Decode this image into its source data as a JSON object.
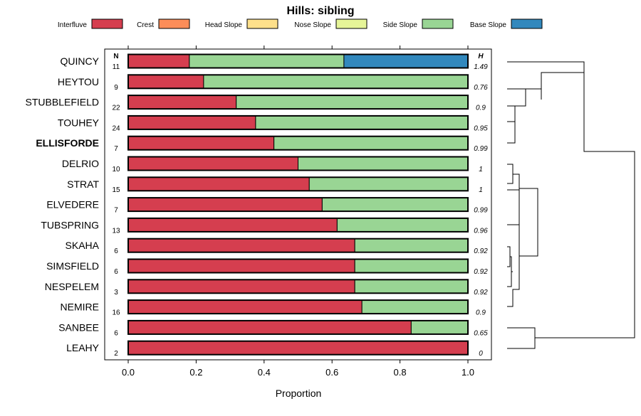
{
  "chart_data": {
    "type": "bar",
    "orientation": "horizontal-stacked",
    "title": "Hills: sibling",
    "xlabel": "Proportion",
    "ylabel": "",
    "xlim": [
      0,
      1
    ],
    "xticks": [
      "0.0",
      "0.2",
      "0.4",
      "0.6",
      "0.8",
      "1.0"
    ],
    "n_header": "N",
    "h_header": "H",
    "legend": [
      {
        "name": "Interfluve",
        "color": "#d53e4f"
      },
      {
        "name": "Crest",
        "color": "#fc8d59"
      },
      {
        "name": "Head Slope",
        "color": "#fee08b"
      },
      {
        "name": "Nose Slope",
        "color": "#e6f598"
      },
      {
        "name": "Side Slope",
        "color": "#99d594"
      },
      {
        "name": "Base Slope",
        "color": "#3288bd"
      }
    ],
    "categories": [
      "QUINCY",
      "HEYTOU",
      "STUBBLEFIELD",
      "TOUHEY",
      "ELLISFORDE",
      "DELRIO",
      "STRAT",
      "ELVEDERE",
      "TUBSPRING",
      "SKAHA",
      "SIMSFIELD",
      "NESPELEM",
      "NEMIRE",
      "SANBEE",
      "LEAHY"
    ],
    "bold_category": "ELLISFORDE",
    "n_values": [
      "11",
      "9",
      "22",
      "24",
      "7",
      "10",
      "15",
      "7",
      "13",
      "6",
      "6",
      "3",
      "16",
      "6",
      "2"
    ],
    "h_values": [
      "1.49",
      "0.76",
      "0.9",
      "0.95",
      "0.99",
      "1",
      "1",
      "0.99",
      "0.96",
      "0.92",
      "0.92",
      "0.92",
      "0.9",
      "0.65",
      "0"
    ],
    "series": [
      {
        "name": "Interfluve",
        "values": [
          0.18,
          0.222,
          0.318,
          0.375,
          0.429,
          0.5,
          0.533,
          0.571,
          0.615,
          0.667,
          0.667,
          0.667,
          0.688,
          0.833,
          1.0
        ]
      },
      {
        "name": "Crest",
        "values": [
          0,
          0,
          0,
          0,
          0,
          0,
          0,
          0,
          0,
          0,
          0,
          0,
          0,
          0,
          0
        ]
      },
      {
        "name": "Head Slope",
        "values": [
          0,
          0,
          0,
          0,
          0,
          0,
          0,
          0,
          0,
          0,
          0,
          0,
          0,
          0,
          0
        ]
      },
      {
        "name": "Nose Slope",
        "values": [
          0,
          0,
          0,
          0,
          0,
          0,
          0,
          0,
          0,
          0,
          0,
          0,
          0,
          0,
          0
        ]
      },
      {
        "name": "Side Slope",
        "values": [
          0.455,
          0.778,
          0.682,
          0.625,
          0.571,
          0.5,
          0.467,
          0.429,
          0.385,
          0.333,
          0.333,
          0.333,
          0.312,
          0.167,
          0.0
        ]
      },
      {
        "name": "Base Slope",
        "values": [
          0.365,
          0,
          0,
          0,
          0,
          0,
          0,
          0,
          0,
          0,
          0,
          0,
          0,
          0,
          0
        ]
      }
    ]
  }
}
